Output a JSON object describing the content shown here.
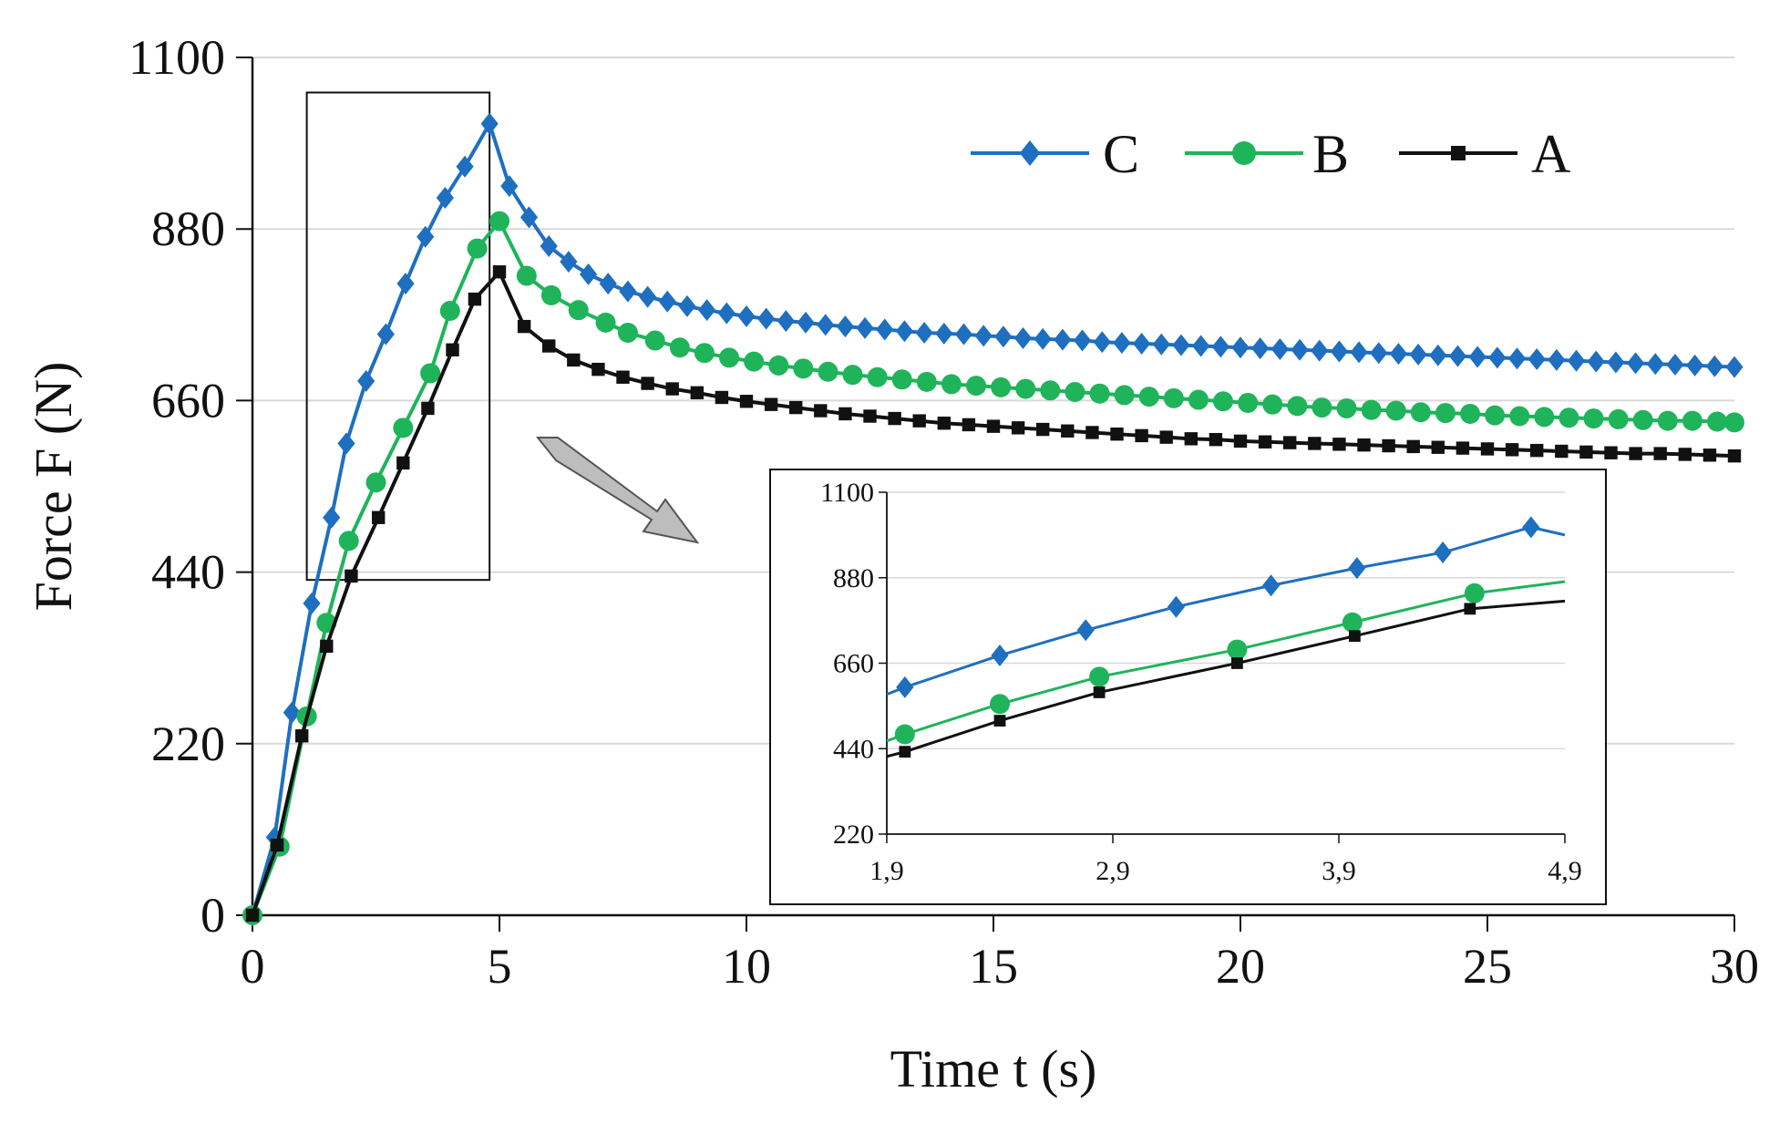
{
  "chart_data": [
    {
      "type": "line",
      "role": "main",
      "title": "",
      "xlabel": "Time t (s)",
      "ylabel": "Force F (N)",
      "xlim": [
        0,
        30
      ],
      "ylim": [
        0,
        1100
      ],
      "xticks": [
        0,
        5,
        10,
        15,
        20,
        25,
        30
      ],
      "yticks": [
        0,
        220,
        440,
        660,
        880,
        1100
      ],
      "xtick_labels": [
        "0",
        "5",
        "10",
        "15",
        "20",
        "25",
        "30"
      ],
      "ytick_labels": [
        "0",
        "220",
        "440",
        "660",
        "880",
        "1100"
      ],
      "grid": "horizontal",
      "legend": "top-right",
      "zoom_window": {
        "x": [
          1.1,
          4.8
        ],
        "y": [
          430,
          1055
        ]
      },
      "series": [
        {
          "name": "C",
          "color": "#1f6fc0",
          "marker": "diamond",
          "x": [
            0,
            0.45,
            0.8,
            1.2,
            1.6,
            1.9,
            2.3,
            2.7,
            3.1,
            3.5,
            3.9,
            4.3,
            4.8,
            5.2,
            5.6,
            6.0,
            6.4,
            6.8,
            7.2,
            7.6,
            8.0,
            8.4,
            8.8,
            9.2,
            9.6,
            10.0,
            10.4,
            10.8,
            11.2,
            11.6,
            12.0,
            12.4,
            12.8,
            13.2,
            13.6,
            14.0,
            14.4,
            14.8,
            15.2,
            15.6,
            16.0,
            16.4,
            16.8,
            17.2,
            17.6,
            18.0,
            18.4,
            18.8,
            19.2,
            19.6,
            20.0,
            20.4,
            20.8,
            21.2,
            21.6,
            22.0,
            22.4,
            22.8,
            23.2,
            23.6,
            24.0,
            24.4,
            24.8,
            25.2,
            25.6,
            26.0,
            26.4,
            26.8,
            27.2,
            27.6,
            28.0,
            28.4,
            28.8,
            29.2,
            29.6,
            30.0
          ],
          "y": [
            0,
            100,
            260,
            400,
            510,
            605,
            685,
            745,
            810,
            870,
            920,
            960,
            1015,
            935,
            895,
            858,
            838,
            822,
            810,
            800,
            793,
            787,
            781,
            776,
            772,
            768,
            765,
            762,
            760,
            757,
            755,
            753,
            751,
            749,
            747,
            746,
            745,
            743,
            742,
            740,
            739,
            738,
            737,
            735,
            734,
            733,
            732,
            731,
            730,
            729,
            728,
            727,
            726,
            725,
            724,
            723,
            722,
            721,
            720,
            719,
            718,
            717,
            716,
            715,
            714,
            713,
            712,
            711,
            710,
            709,
            708,
            707,
            706,
            705,
            704,
            703
          ]
        },
        {
          "name": "B",
          "color": "#1fb45a",
          "marker": "circle",
          "x": [
            0,
            0.55,
            1.1,
            1.5,
            1.95,
            2.5,
            3.05,
            3.6,
            4.0,
            4.55,
            5.0,
            5.55,
            6.05,
            6.6,
            7.15,
            7.6,
            8.15,
            8.65,
            9.15,
            9.65,
            10.15,
            10.65,
            11.15,
            11.65,
            12.15,
            12.65,
            13.15,
            13.65,
            14.15,
            14.65,
            15.15,
            15.65,
            16.15,
            16.65,
            17.15,
            17.65,
            18.15,
            18.65,
            19.15,
            19.65,
            20.15,
            20.65,
            21.15,
            21.65,
            22.15,
            22.65,
            23.15,
            23.65,
            24.15,
            24.65,
            25.15,
            25.65,
            26.15,
            26.65,
            27.15,
            27.65,
            28.15,
            28.65,
            29.15,
            29.65,
            30.0
          ],
          "y": [
            0,
            88,
            255,
            375,
            480,
            555,
            625,
            695,
            775,
            855,
            890,
            820,
            795,
            776,
            760,
            747,
            737,
            728,
            721,
            715,
            710,
            705,
            701,
            697,
            693,
            690,
            687,
            684,
            681,
            679,
            677,
            675,
            673,
            671,
            669,
            667,
            665,
            663,
            661,
            659,
            657,
            655,
            653,
            651,
            650,
            648,
            647,
            645,
            644,
            643,
            641,
            640,
            639,
            638,
            637,
            636,
            635,
            634,
            634,
            633,
            632
          ]
        },
        {
          "name": "A",
          "color": "#111111",
          "marker": "square",
          "x": [
            0,
            0.5,
            1.0,
            1.5,
            2.0,
            2.55,
            3.05,
            3.55,
            4.05,
            4.5,
            5.0,
            5.5,
            6.0,
            6.5,
            7.0,
            7.5,
            8.0,
            8.5,
            9.0,
            9.5,
            10.0,
            10.5,
            11.0,
            11.5,
            12.0,
            12.5,
            13.0,
            13.5,
            14.0,
            14.5,
            15.0,
            15.5,
            16.0,
            16.5,
            17.0,
            17.5,
            18.0,
            18.5,
            19.0,
            19.5,
            20.0,
            20.5,
            21.0,
            21.5,
            22.0,
            22.5,
            23.0,
            23.5,
            24.0,
            24.5,
            25.0,
            25.5,
            26.0,
            26.5,
            27.0,
            27.5,
            28.0,
            28.5,
            29.0,
            29.5,
            30.0
          ],
          "y": [
            0,
            90,
            230,
            345,
            435,
            510,
            580,
            650,
            725,
            790,
            825,
            755,
            730,
            712,
            700,
            690,
            682,
            675,
            670,
            664,
            659,
            655,
            651,
            647,
            643,
            640,
            637,
            634,
            631,
            629,
            627,
            625,
            623,
            621,
            619,
            617,
            615,
            613,
            611,
            610,
            608,
            607,
            606,
            605,
            604,
            603,
            602,
            601,
            600,
            599,
            598,
            597,
            596,
            595,
            594,
            593,
            592,
            592,
            591,
            590,
            589
          ]
        }
      ]
    },
    {
      "type": "line",
      "role": "inset",
      "title": "",
      "xlabel": "",
      "ylabel": "",
      "xlim": [
        1.9,
        4.9
      ],
      "ylim": [
        220,
        1100
      ],
      "xticks": [
        1.9,
        2.9,
        3.9,
        4.9
      ],
      "yticks": [
        220,
        440,
        660,
        880,
        1100
      ],
      "xtick_labels": [
        "1,9",
        "2,9",
        "3,9",
        "4,9"
      ],
      "ytick_labels": [
        "220",
        "440",
        "660",
        "880",
        "1100"
      ],
      "grid": "horizontal",
      "series": [
        {
          "name": "C",
          "color": "#1f6fc0",
          "marker": "diamond",
          "x": [
            1.9,
            1.98,
            2.4,
            2.78,
            3.18,
            3.6,
            3.98,
            4.36,
            4.75,
            4.9
          ],
          "y": [
            580,
            598,
            680,
            745,
            805,
            860,
            905,
            945,
            1010,
            990
          ],
          "markers_x": [
            1.98,
            2.4,
            2.78,
            3.18,
            3.6,
            3.98,
            4.36,
            4.75
          ]
        },
        {
          "name": "B",
          "color": "#1fb45a",
          "marker": "circle",
          "x": [
            1.9,
            1.98,
            2.4,
            2.84,
            3.45,
            3.96,
            4.5,
            4.9
          ],
          "y": [
            460,
            477,
            555,
            625,
            695,
            765,
            840,
            870
          ],
          "markers_x": [
            1.98,
            2.4,
            2.84,
            3.45,
            3.96,
            4.5
          ]
        },
        {
          "name": "A",
          "color": "#111111",
          "marker": "square",
          "x": [
            1.9,
            1.98,
            2.4,
            2.84,
            3.45,
            3.97,
            4.48,
            4.9
          ],
          "y": [
            420,
            432,
            512,
            585,
            660,
            730,
            800,
            820
          ],
          "markers_x": [
            1.98,
            2.4,
            2.84,
            3.45,
            3.97,
            4.48
          ]
        }
      ]
    }
  ]
}
